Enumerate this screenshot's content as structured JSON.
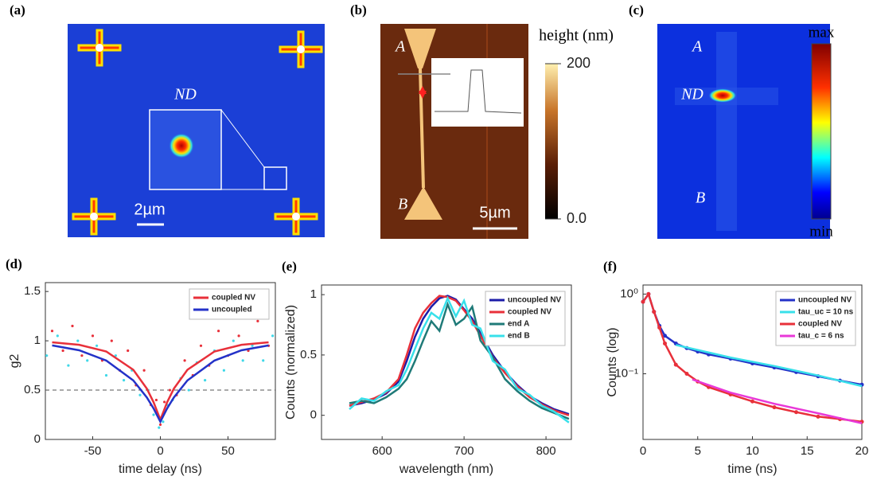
{
  "panels": [
    {
      "label": "(a)",
      "inset_label": "ND",
      "scale_bar": "2µm"
    },
    {
      "label": "(b)",
      "end_a": "A",
      "end_b": "B",
      "scale_bar": "5µm",
      "colorbar": {
        "title": "height (nm)",
        "clim": [
          0,
          200
        ],
        "ticks": [
          200,
          {
            "value": 0,
            "label": "0.0"
          }
        ]
      }
    },
    {
      "label": "(c)",
      "end_a": "A",
      "center": "ND",
      "end_b": "B",
      "colorbar": {
        "top": "max",
        "bottom": "min"
      }
    }
  ],
  "chart_data": [
    {
      "type": "line",
      "label": "(d)",
      "xlabel": "time delay (ns)",
      "ylabel": "g2",
      "xlim": [
        -85,
        85
      ],
      "ylim": [
        0,
        1.59
      ],
      "xticks": [
        -50,
        0,
        50
      ],
      "yticks": [
        0,
        0.5,
        1,
        1.5
      ],
      "hline": 0.5,
      "legend": "upper right",
      "points": [
        {
          "color": "#e8303a",
          "x": [
            -80,
            -72,
            -65,
            -58,
            -50,
            -43,
            -36,
            -30,
            -24,
            -18,
            -12,
            -7,
            -3,
            0,
            3,
            7,
            12,
            18,
            24,
            30,
            36,
            43,
            50,
            58,
            65,
            72,
            80
          ],
          "y": [
            1.1,
            0.9,
            1.15,
            0.85,
            1.05,
            0.8,
            1.0,
            0.7,
            0.9,
            0.55,
            0.7,
            0.35,
            0.4,
            0.15,
            0.38,
            0.5,
            0.45,
            0.8,
            0.65,
            0.95,
            0.75,
            1.1,
            0.85,
            1.05,
            0.9,
            1.2,
            0.95
          ]
        },
        {
          "color": "#3fd8e8",
          "x": [
            -84,
            -76,
            -68,
            -61,
            -54,
            -47,
            -40,
            -33,
            -27,
            -21,
            -15,
            -9,
            -5,
            -1,
            2,
            5,
            9,
            15,
            21,
            27,
            33,
            40,
            47,
            54,
            61,
            68,
            76,
            83
          ],
          "y": [
            0.85,
            1.05,
            0.75,
            1.0,
            0.8,
            0.95,
            0.65,
            0.85,
            0.6,
            0.7,
            0.45,
            0.5,
            0.25,
            0.12,
            0.18,
            0.35,
            0.4,
            0.62,
            0.5,
            0.78,
            0.6,
            0.9,
            0.7,
            1.0,
            0.8,
            0.95,
            0.8,
            1.05
          ]
        }
      ],
      "series": [
        {
          "name": "coupled NV",
          "color": "#e8303a",
          "x": [
            -80,
            -60,
            -40,
            -20,
            -10,
            -5,
            0,
            5,
            10,
            20,
            40,
            60,
            80
          ],
          "values": [
            0.985,
            0.96,
            0.892,
            0.706,
            0.515,
            0.377,
            0.2,
            0.377,
            0.515,
            0.706,
            0.892,
            0.96,
            0.985
          ]
        },
        {
          "name": "uncoupled",
          "color": "#2432c8",
          "x": [
            -80,
            -60,
            -40,
            -20,
            -10,
            -5,
            0,
            5,
            10,
            20,
            40,
            60,
            80
          ],
          "values": [
            0.953,
            0.904,
            0.8,
            0.598,
            0.426,
            0.314,
            0.18,
            0.314,
            0.426,
            0.598,
            0.8,
            0.904,
            0.953
          ]
        }
      ]
    },
    {
      "type": "line",
      "label": "(e)",
      "xlabel": "wavelength (nm)",
      "ylabel": "Counts (normalized)",
      "xlim": [
        526,
        831
      ],
      "ylim": [
        -0.2,
        1.08
      ],
      "xticks": [
        600,
        700,
        800
      ],
      "yticks": [
        0,
        0.5,
        1
      ],
      "legend": "upper right",
      "series": [
        {
          "name": "uncoupled NV",
          "color": "#1c1ca8",
          "x": [
            560,
            575,
            590,
            605,
            620,
            630,
            640,
            650,
            660,
            670,
            680,
            690,
            700,
            710,
            720,
            735,
            750,
            765,
            780,
            795,
            810,
            828
          ],
          "values": [
            0.08,
            0.1,
            0.13,
            0.18,
            0.28,
            0.45,
            0.65,
            0.8,
            0.9,
            0.97,
            0.99,
            0.96,
            0.88,
            0.8,
            0.68,
            0.5,
            0.36,
            0.25,
            0.16,
            0.1,
            0.05,
            0.01
          ]
        },
        {
          "name": "coupled NV",
          "color": "#e8303a",
          "x": [
            560,
            575,
            590,
            605,
            620,
            630,
            640,
            650,
            660,
            670,
            680,
            690,
            700,
            710,
            720,
            735,
            750,
            765,
            780,
            795,
            810,
            828
          ],
          "values": [
            0.08,
            0.11,
            0.14,
            0.19,
            0.3,
            0.5,
            0.72,
            0.85,
            0.93,
            0.99,
            0.98,
            0.95,
            0.87,
            0.78,
            0.66,
            0.48,
            0.35,
            0.24,
            0.15,
            0.09,
            0.04,
            0.0
          ]
        },
        {
          "name": "end A",
          "color": "#1f7a78",
          "x": [
            560,
            575,
            590,
            605,
            620,
            630,
            640,
            650,
            660,
            670,
            680,
            690,
            700,
            710,
            720,
            735,
            750,
            765,
            780,
            795,
            810,
            828
          ],
          "values": [
            0.1,
            0.12,
            0.1,
            0.15,
            0.22,
            0.3,
            0.45,
            0.62,
            0.78,
            0.7,
            0.92,
            0.75,
            0.8,
            0.9,
            0.62,
            0.48,
            0.3,
            0.2,
            0.12,
            0.06,
            0.02,
            -0.03
          ]
        },
        {
          "name": "end B",
          "color": "#38e0ea",
          "x": [
            560,
            575,
            590,
            605,
            620,
            630,
            640,
            650,
            660,
            670,
            680,
            690,
            700,
            710,
            720,
            735,
            750,
            765,
            780,
            795,
            810,
            828
          ],
          "values": [
            0.05,
            0.14,
            0.12,
            0.2,
            0.25,
            0.38,
            0.55,
            0.72,
            0.85,
            0.8,
            0.97,
            0.82,
            0.95,
            0.75,
            0.72,
            0.45,
            0.38,
            0.22,
            0.17,
            0.08,
            0.03,
            -0.06
          ]
        }
      ]
    },
    {
      "type": "line",
      "label": "(f)",
      "xlabel": "time (ns)",
      "ylabel": "Counts (log)",
      "log_y": true,
      "xlim": [
        0,
        20
      ],
      "ylim": [
        0.015,
        1.3
      ],
      "xticks": [
        0,
        5,
        10,
        15,
        20
      ],
      "yticks": [
        {
          "value": 0.1,
          "label": "10⁻¹"
        },
        {
          "value": 1,
          "label": "10⁰"
        }
      ],
      "legend": "upper right",
      "series": [
        {
          "name": "uncoupled NV",
          "color": "#2432c8",
          "marker": true,
          "x": [
            0,
            0.5,
            1,
            1.5,
            2,
            3,
            4,
            5,
            6,
            8,
            10,
            12,
            14,
            16,
            18,
            20
          ],
          "values": [
            0.8,
            1,
            0.6,
            0.4,
            0.3,
            0.24,
            0.21,
            0.19,
            0.175,
            0.155,
            0.135,
            0.12,
            0.105,
            0.093,
            0.082,
            0.073
          ]
        },
        {
          "name": "tau_uc = 10 ns",
          "color": "#38e0ea",
          "x": [
            3,
            8,
            12,
            16,
            20
          ],
          "values": [
            0.23,
            0.16,
            0.125,
            0.095,
            0.07
          ]
        },
        {
          "name": "coupled NV",
          "color": "#e8303a",
          "marker": true,
          "x": [
            0,
            0.5,
            1,
            1.5,
            2,
            3,
            4,
            5,
            6,
            8,
            10,
            12,
            14,
            16,
            18,
            20
          ],
          "values": [
            0.8,
            1,
            0.6,
            0.38,
            0.24,
            0.13,
            0.1,
            0.08,
            0.068,
            0.055,
            0.045,
            0.038,
            0.033,
            0.029,
            0.027,
            0.025
          ]
        },
        {
          "name": "tau_c = 6 ns",
          "color": "#e838d8",
          "x": [
            4.5,
            8,
            12,
            16,
            20
          ],
          "values": [
            0.085,
            0.058,
            0.042,
            0.032,
            0.024
          ]
        }
      ]
    }
  ]
}
